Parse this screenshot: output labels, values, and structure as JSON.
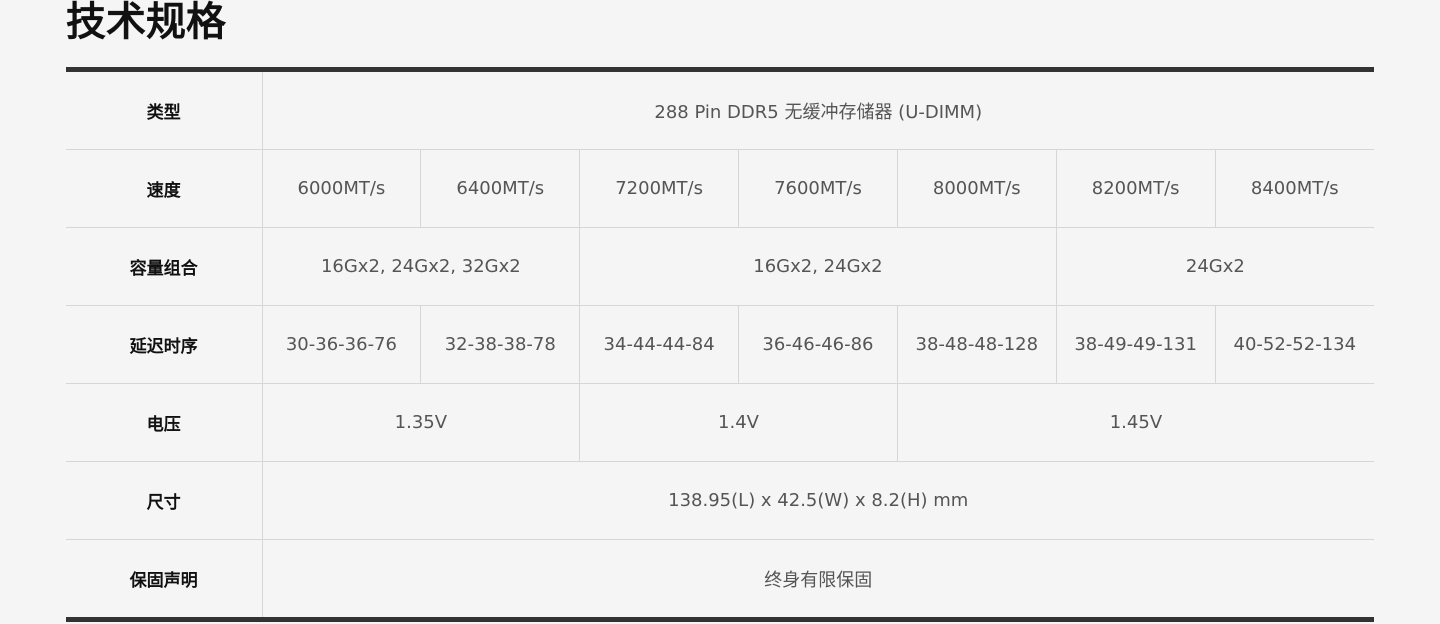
{
  "title": "技术规格",
  "rows": {
    "type": {
      "label": "类型",
      "value": "288 Pin DDR5 无缓冲存储器 (U-DIMM)"
    },
    "speed": {
      "label": "速度",
      "values": [
        "6000MT/s",
        "6400MT/s",
        "7200MT/s",
        "7600MT/s",
        "8000MT/s",
        "8200MT/s",
        "8400MT/s"
      ]
    },
    "capacity": {
      "label": "容量组合",
      "values": [
        "16Gx2, 24Gx2, 32Gx2",
        "16Gx2, 24Gx2",
        "24Gx2"
      ]
    },
    "latency": {
      "label": "延迟时序",
      "values": [
        "30-36-36-76",
        "32-38-38-78",
        "34-44-44-84",
        "36-46-46-86",
        "38-48-48-128",
        "38-49-49-131",
        "40-52-52-134"
      ]
    },
    "voltage": {
      "label": "电压",
      "values": [
        "1.35V",
        "1.4V",
        "1.45V"
      ]
    },
    "size": {
      "label": "尺寸",
      "value": "138.95(L) x 42.5(W) x 8.2(H) mm"
    },
    "warranty": {
      "label": "保固声明",
      "value": "终身有限保固"
    }
  }
}
